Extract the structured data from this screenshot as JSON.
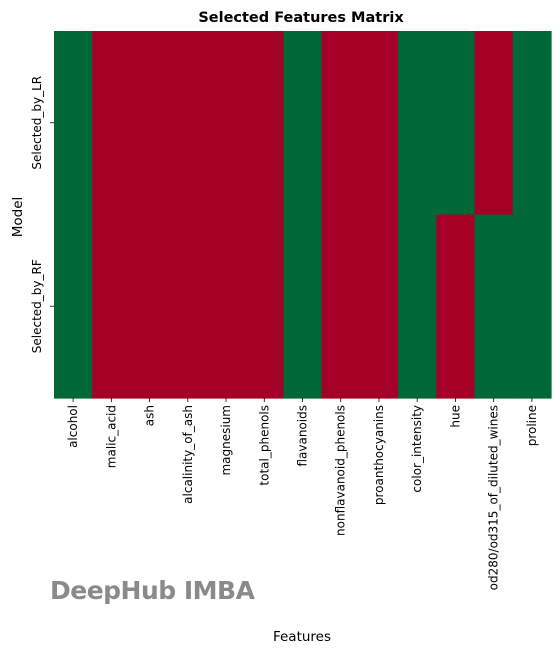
{
  "chart_data": {
    "type": "heatmap",
    "title": "Selected Features Matrix",
    "xlabel": "Features",
    "ylabel": "Model",
    "x": [
      "alcohol",
      "malic_acid",
      "ash",
      "alcalinity_of_ash",
      "magnesium",
      "total_phenols",
      "flavanoids",
      "nonflavanoid_phenols",
      "proanthocyanins",
      "color_intensity",
      "hue",
      "od280/od315_of_diluted_wines",
      "proline"
    ],
    "y": [
      "Selected_by_LR",
      "Selected_by_RF"
    ],
    "values": [
      [
        1,
        0,
        0,
        0,
        0,
        0,
        1,
        0,
        0,
        1,
        1,
        0,
        1
      ],
      [
        1,
        0,
        0,
        0,
        0,
        0,
        1,
        0,
        0,
        1,
        0,
        1,
        1
      ]
    ],
    "colors": {
      "selected": "#006837",
      "not_selected": "#a50026"
    },
    "colorbar": false
  },
  "watermark": "DeepHub IMBA"
}
